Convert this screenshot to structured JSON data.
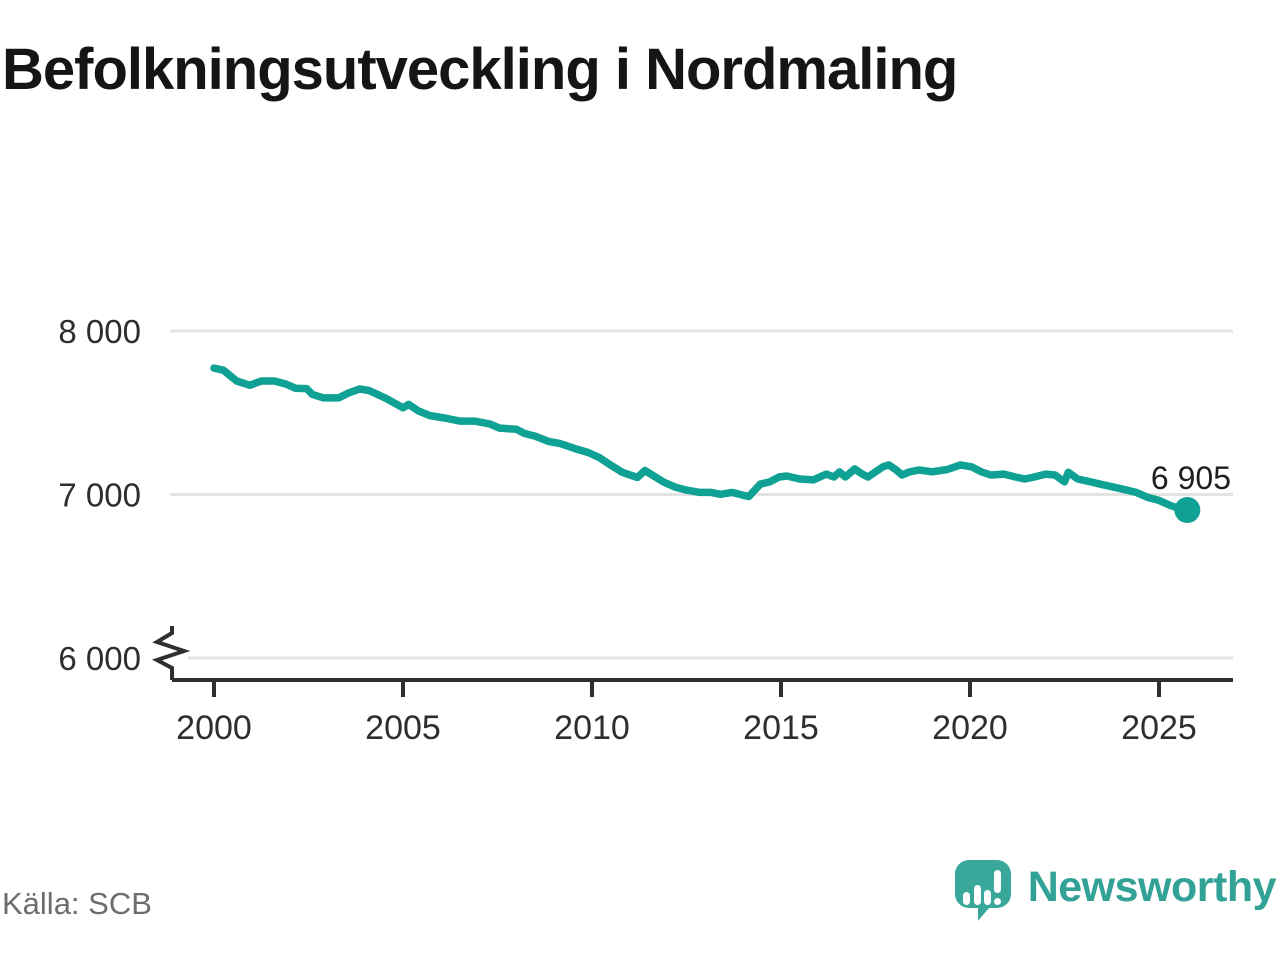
{
  "title": "Befolkningsutveckling i Nordmaling",
  "footer": {
    "source": "Källa: SCB",
    "brand": "Newsworthy"
  },
  "colors": {
    "line": "#10a195",
    "marker": "#10a195",
    "grid": "#e3e3e3",
    "axis": "#2f2f2f",
    "title_text": "#151515",
    "tick_text": "#2e2e2e",
    "source_text": "#6d6d6d",
    "brand_teal": "#33a296"
  },
  "chart_data": {
    "type": "line",
    "title": "Befolkningsutveckling i Nordmaling",
    "xlabel": "",
    "ylabel": "",
    "x_axis": {
      "ticks": [
        2000,
        2005,
        2010,
        2015,
        2020,
        2025
      ],
      "range": [
        1999.0,
        2027.0
      ]
    },
    "y_axis": {
      "ticks": [
        {
          "label": "8 000",
          "value": 8000
        },
        {
          "label": "7 000",
          "value": 7000
        },
        {
          "label": "6 000",
          "value": 6000
        }
      ],
      "range_shown": [
        6000,
        8000
      ],
      "axis_break": true,
      "grid": true
    },
    "latest": {
      "label": "6 905",
      "value": 6905,
      "year": 2025.75
    },
    "legend": "none",
    "series": [
      {
        "name": "befolkning",
        "points": [
          [
            2000.0,
            7773
          ],
          [
            2000.25,
            7760
          ],
          [
            2000.6,
            7694
          ],
          [
            2000.95,
            7668
          ],
          [
            2001.25,
            7694
          ],
          [
            2001.6,
            7694
          ],
          [
            2001.9,
            7676
          ],
          [
            2002.15,
            7650
          ],
          [
            2002.45,
            7648
          ],
          [
            2002.6,
            7612
          ],
          [
            2002.9,
            7591
          ],
          [
            2003.3,
            7591
          ],
          [
            2003.55,
            7620
          ],
          [
            2003.85,
            7645
          ],
          [
            2004.1,
            7636
          ],
          [
            2004.55,
            7588
          ],
          [
            2005.0,
            7530
          ],
          [
            2005.15,
            7551
          ],
          [
            2005.4,
            7512
          ],
          [
            2005.7,
            7483
          ],
          [
            2006.1,
            7468
          ],
          [
            2006.5,
            7449
          ],
          [
            2006.9,
            7449
          ],
          [
            2007.3,
            7431
          ],
          [
            2007.55,
            7406
          ],
          [
            2008.0,
            7399
          ],
          [
            2008.2,
            7375
          ],
          [
            2008.5,
            7356
          ],
          [
            2008.85,
            7325
          ],
          [
            2009.15,
            7312
          ],
          [
            2009.55,
            7281
          ],
          [
            2009.9,
            7257
          ],
          [
            2010.2,
            7225
          ],
          [
            2010.5,
            7179
          ],
          [
            2010.8,
            7136
          ],
          [
            2011.2,
            7104
          ],
          [
            2011.4,
            7147
          ],
          [
            2011.9,
            7075
          ],
          [
            2012.2,
            7045
          ],
          [
            2012.5,
            7027
          ],
          [
            2012.85,
            7013
          ],
          [
            2013.15,
            7013
          ],
          [
            2013.4,
            7001
          ],
          [
            2013.7,
            7013
          ],
          [
            2014.0,
            6995
          ],
          [
            2014.15,
            6988
          ],
          [
            2014.45,
            7063
          ],
          [
            2014.7,
            7077
          ],
          [
            2014.95,
            7107
          ],
          [
            2015.15,
            7113
          ],
          [
            2015.5,
            7095
          ],
          [
            2015.85,
            7089
          ],
          [
            2016.2,
            7125
          ],
          [
            2016.4,
            7107
          ],
          [
            2016.55,
            7138
          ],
          [
            2016.7,
            7107
          ],
          [
            2016.95,
            7156
          ],
          [
            2017.15,
            7125
          ],
          [
            2017.3,
            7107
          ],
          [
            2017.5,
            7138
          ],
          [
            2017.7,
            7170
          ],
          [
            2017.85,
            7181
          ],
          [
            2018.05,
            7150
          ],
          [
            2018.2,
            7119
          ],
          [
            2018.4,
            7138
          ],
          [
            2018.65,
            7150
          ],
          [
            2019.0,
            7139
          ],
          [
            2019.4,
            7153
          ],
          [
            2019.75,
            7181
          ],
          [
            2020.05,
            7169
          ],
          [
            2020.3,
            7139
          ],
          [
            2020.55,
            7119
          ],
          [
            2020.9,
            7125
          ],
          [
            2021.2,
            7107
          ],
          [
            2021.45,
            7095
          ],
          [
            2021.7,
            7107
          ],
          [
            2022.0,
            7125
          ],
          [
            2022.25,
            7119
          ],
          [
            2022.5,
            7077
          ],
          [
            2022.6,
            7136
          ],
          [
            2022.85,
            7095
          ],
          [
            2023.2,
            7077
          ],
          [
            2023.45,
            7063
          ],
          [
            2023.8,
            7045
          ],
          [
            2024.05,
            7032
          ],
          [
            2024.4,
            7013
          ],
          [
            2024.7,
            6982
          ],
          [
            2025.0,
            6964
          ],
          [
            2025.3,
            6933
          ],
          [
            2025.55,
            6913
          ],
          [
            2025.75,
            6905
          ]
        ]
      }
    ]
  }
}
